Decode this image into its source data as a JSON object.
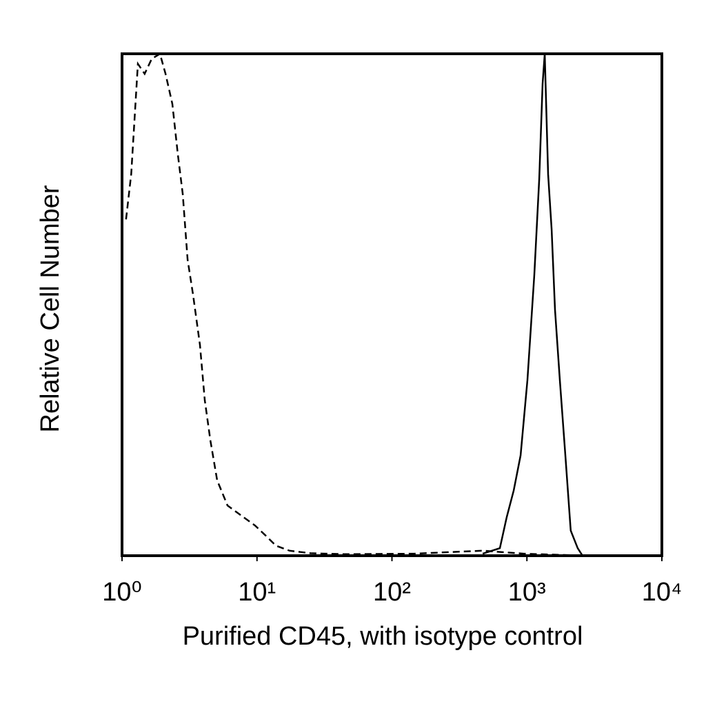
{
  "chart_data": {
    "type": "line",
    "x_label": "Purified CD45, with isotype control",
    "y_label": "Relative Cell Number",
    "xscale": "log",
    "xlim": [
      1,
      10000
    ],
    "xticks": [
      {
        "value": 1,
        "label": "10⁰"
      },
      {
        "value": 10,
        "label": "10¹"
      },
      {
        "value": 100,
        "label": "10²"
      },
      {
        "value": 1000,
        "label": "10³"
      },
      {
        "value": 10000,
        "label": "10⁴"
      }
    ],
    "ylim": [
      0,
      100
    ],
    "grid": false,
    "series": [
      {
        "color": "#000000",
        "linestyle": "dashed",
        "x": [
          1.07,
          1.17,
          1.31,
          1.47,
          1.66,
          1.91,
          2.1,
          2.36,
          2.59,
          2.82,
          3.06,
          3.36,
          3.78,
          4.1,
          4.51,
          5.07,
          6.05,
          7.65,
          9.68,
          11.6,
          13.8,
          17.4,
          24.8,
          44.7,
          145,
          470,
          951,
          2740
        ],
        "values": [
          67,
          76,
          98,
          96,
          99,
          100,
          96,
          90,
          80,
          72,
          59,
          52,
          42,
          31,
          23,
          15,
          10,
          8,
          6,
          4,
          2,
          1,
          0.5,
          0.3,
          0.4,
          1,
          0.4,
          0
        ]
      },
      {
        "color": "#000000",
        "linestyle": "solid",
        "x": [
          470,
          630,
          709,
          798,
          898,
          1009,
          1135,
          1233,
          1307,
          1355,
          1436,
          1524,
          1615,
          1754,
          1927,
          2113,
          2379,
          2582
        ],
        "values": [
          0.4,
          1.5,
          7.7,
          13,
          20,
          35,
          56,
          75,
          94,
          100,
          76,
          65,
          49,
          35,
          20,
          5,
          1.5,
          0
        ]
      }
    ]
  }
}
